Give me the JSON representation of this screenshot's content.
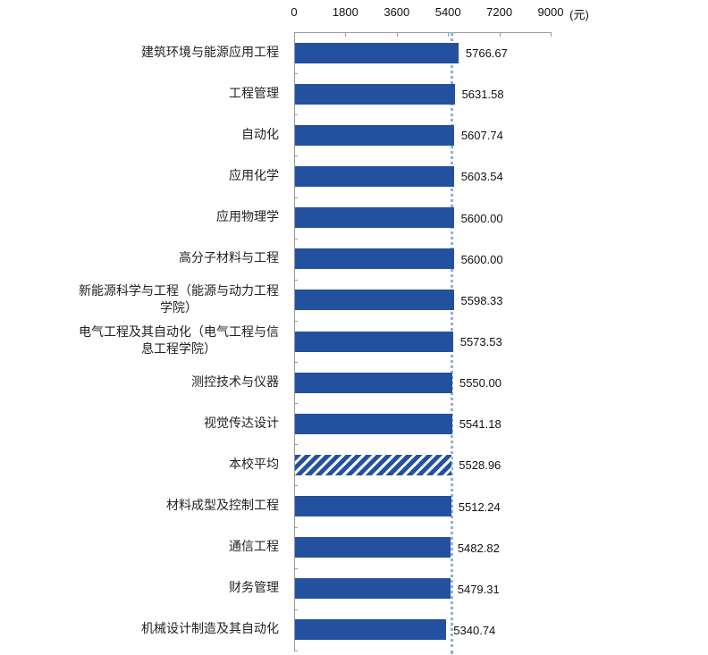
{
  "chart_data": {
    "type": "bar",
    "orientation": "horizontal",
    "title": "",
    "xlabel": "(元)",
    "ylabel": "",
    "xlim": [
      0,
      9000
    ],
    "x_ticks": [
      0,
      1800,
      3600,
      5400,
      7200,
      9000
    ],
    "x_tick_labels": [
      "0",
      "1800",
      "3600",
      "5400",
      "7200",
      "9000"
    ],
    "unit_label": "(元)",
    "grid": false,
    "legend": null,
    "reference_line": {
      "label": "本校平均",
      "value": 5528.96,
      "style": "dotted",
      "color": "#8FB0DD"
    },
    "bar_color": "#2351A0",
    "categories": [
      "建筑环境与能源应用工程",
      "工程管理",
      "自动化",
      "应用化学",
      "应用物理学",
      "高分子材料与工程",
      "新能源科学与工程（能源与动力工程学院）",
      "电气工程及其自动化（电气工程与信息工程学院）",
      "测控技术与仪器",
      "视觉传达设计",
      "本校平均",
      "材料成型及控制工程",
      "通信工程",
      "财务管理",
      "机械设计制造及其自动化"
    ],
    "category_display_lines": [
      [
        "建筑环境与能源应用工程"
      ],
      [
        "工程管理"
      ],
      [
        "自动化"
      ],
      [
        "应用化学"
      ],
      [
        "应用物理学"
      ],
      [
        "高分子材料与工程"
      ],
      [
        "新能源科学与工程（能源与动力工程",
        "学院）"
      ],
      [
        "电气工程及其自动化（电气工程与信",
        "息工程学院）"
      ],
      [
        "测控技术与仪器"
      ],
      [
        "视觉传达设计"
      ],
      [
        "本校平均"
      ],
      [
        "材料成型及控制工程"
      ],
      [
        "通信工程"
      ],
      [
        "财务管理"
      ],
      [
        "机械设计制造及其自动化"
      ]
    ],
    "values": [
      5766.67,
      5631.58,
      5607.74,
      5603.54,
      5600.0,
      5600.0,
      5598.33,
      5573.53,
      5550.0,
      5541.18,
      5528.96,
      5512.24,
      5482.82,
      5479.31,
      5340.74
    ],
    "value_labels": [
      "5766.67",
      "5631.58",
      "5607.74",
      "5603.54",
      "5600.00",
      "5600.00",
      "5598.33",
      "5573.53",
      "5550.00",
      "5541.18",
      "5528.96",
      "5512.24",
      "5482.82",
      "5479.31",
      "5340.74"
    ],
    "highlight_index": 10,
    "highlight_style": "hatched"
  }
}
